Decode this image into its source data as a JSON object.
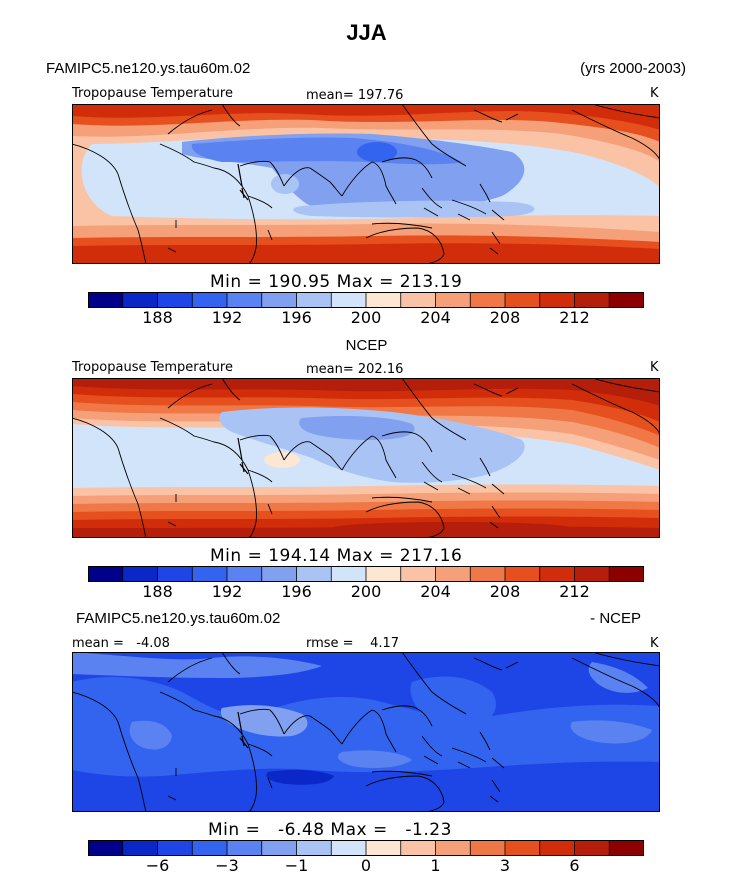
{
  "page": {
    "title": "JJA"
  },
  "header": {
    "case": "FAMIPC5.ne120.ys.tau60m.02",
    "years": "(yrs 2000-2003)"
  },
  "panels": [
    {
      "id": "model",
      "label_left": "Tropopause Temperature",
      "label_mid": "mean= 197.76",
      "unit": "K",
      "stats": "Min = 190.95 Max = 213.19"
    },
    {
      "id": "obs",
      "title": "NCEP",
      "label_left": "Tropopause Temperature",
      "label_mid": "mean= 202.16",
      "unit": "K",
      "stats": "Min = 194.14 Max = 217.16"
    },
    {
      "id": "diff",
      "title_left": "FAMIPC5.ne120.ys.tau60m.02",
      "title_right": "- NCEP",
      "label_left": "mean =   -4.08",
      "label_mid": "rmse =    4.17",
      "unit": "K",
      "stats": "Min =   -6.48 Max =   -1.23"
    }
  ],
  "colorbars": {
    "temperature": {
      "colors": [
        "#00008b",
        "#0a28c8",
        "#1e46e6",
        "#3264f0",
        "#5a82f0",
        "#82a0f0",
        "#aac3f5",
        "#d2e4fa",
        "#fde6d2",
        "#fbc3a5",
        "#f5a078",
        "#f07846",
        "#e6501e",
        "#d22d0a",
        "#b41e0a",
        "#8c0000"
      ],
      "ticks": [
        "188",
        "192",
        "196",
        "200",
        "204",
        "208",
        "212"
      ]
    },
    "difference": {
      "colors": [
        "#00008b",
        "#0a28c8",
        "#1e46e6",
        "#3264f0",
        "#5a82f0",
        "#82a0f0",
        "#aac3f5",
        "#d2e4fa",
        "#fde6d2",
        "#fbc3a5",
        "#f5a078",
        "#f07846",
        "#e6501e",
        "#d22d0a",
        "#b41e0a",
        "#8c0000"
      ],
      "ticks": [
        "−6",
        "−3",
        "−1",
        "0",
        "1",
        "3",
        "6"
      ]
    }
  },
  "map_colors": {
    "model": [
      "#e6501e",
      "#f07846",
      "#f5a078",
      "#fbc3a5",
      "#d2e4fa",
      "#aac3f5",
      "#82a0f0",
      "#5a82f0",
      "#3264f0"
    ],
    "obs": [
      "#b41e0a",
      "#d22d0a",
      "#e6501e",
      "#f07846",
      "#f5a078",
      "#fbc3a5",
      "#fde6d2",
      "#d2e4fa",
      "#aac3f5",
      "#82a0f0"
    ],
    "diff": [
      "#1e46e6",
      "#3264f0",
      "#5a82f0",
      "#82a0f0",
      "#aac3f5",
      "#0a28c8"
    ]
  }
}
